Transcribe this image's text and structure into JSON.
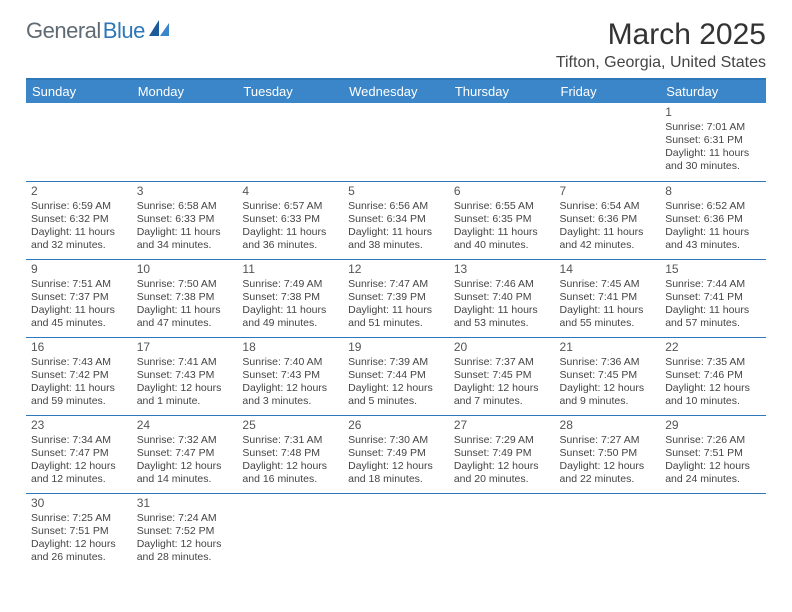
{
  "logo": {
    "text1": "General",
    "text2": "Blue"
  },
  "title": "March 2025",
  "location": "Tifton, Georgia, United States",
  "colors": {
    "header_bg": "#3b86c8",
    "border": "#2e77b8",
    "text": "#444444",
    "logo_gray": "#5f6a72",
    "logo_blue": "#2e77b8",
    "background": "#ffffff"
  },
  "typography": {
    "title_fontsize": 30,
    "location_fontsize": 16,
    "dayhead_fontsize": 13,
    "cell_fontsize": 10.5,
    "daynum_fontsize": 12
  },
  "day_headers": [
    "Sunday",
    "Monday",
    "Tuesday",
    "Wednesday",
    "Thursday",
    "Friday",
    "Saturday"
  ],
  "weeks": [
    [
      {
        "n": "",
        "sr": "",
        "ss": "",
        "dl": ""
      },
      {
        "n": "",
        "sr": "",
        "ss": "",
        "dl": ""
      },
      {
        "n": "",
        "sr": "",
        "ss": "",
        "dl": ""
      },
      {
        "n": "",
        "sr": "",
        "ss": "",
        "dl": ""
      },
      {
        "n": "",
        "sr": "",
        "ss": "",
        "dl": ""
      },
      {
        "n": "",
        "sr": "",
        "ss": "",
        "dl": ""
      },
      {
        "n": "1",
        "sr": "Sunrise: 7:01 AM",
        "ss": "Sunset: 6:31 PM",
        "dl": "Daylight: 11 hours and 30 minutes."
      }
    ],
    [
      {
        "n": "2",
        "sr": "Sunrise: 6:59 AM",
        "ss": "Sunset: 6:32 PM",
        "dl": "Daylight: 11 hours and 32 minutes."
      },
      {
        "n": "3",
        "sr": "Sunrise: 6:58 AM",
        "ss": "Sunset: 6:33 PM",
        "dl": "Daylight: 11 hours and 34 minutes."
      },
      {
        "n": "4",
        "sr": "Sunrise: 6:57 AM",
        "ss": "Sunset: 6:33 PM",
        "dl": "Daylight: 11 hours and 36 minutes."
      },
      {
        "n": "5",
        "sr": "Sunrise: 6:56 AM",
        "ss": "Sunset: 6:34 PM",
        "dl": "Daylight: 11 hours and 38 minutes."
      },
      {
        "n": "6",
        "sr": "Sunrise: 6:55 AM",
        "ss": "Sunset: 6:35 PM",
        "dl": "Daylight: 11 hours and 40 minutes."
      },
      {
        "n": "7",
        "sr": "Sunrise: 6:54 AM",
        "ss": "Sunset: 6:36 PM",
        "dl": "Daylight: 11 hours and 42 minutes."
      },
      {
        "n": "8",
        "sr": "Sunrise: 6:52 AM",
        "ss": "Sunset: 6:36 PM",
        "dl": "Daylight: 11 hours and 43 minutes."
      }
    ],
    [
      {
        "n": "9",
        "sr": "Sunrise: 7:51 AM",
        "ss": "Sunset: 7:37 PM",
        "dl": "Daylight: 11 hours and 45 minutes."
      },
      {
        "n": "10",
        "sr": "Sunrise: 7:50 AM",
        "ss": "Sunset: 7:38 PM",
        "dl": "Daylight: 11 hours and 47 minutes."
      },
      {
        "n": "11",
        "sr": "Sunrise: 7:49 AM",
        "ss": "Sunset: 7:38 PM",
        "dl": "Daylight: 11 hours and 49 minutes."
      },
      {
        "n": "12",
        "sr": "Sunrise: 7:47 AM",
        "ss": "Sunset: 7:39 PM",
        "dl": "Daylight: 11 hours and 51 minutes."
      },
      {
        "n": "13",
        "sr": "Sunrise: 7:46 AM",
        "ss": "Sunset: 7:40 PM",
        "dl": "Daylight: 11 hours and 53 minutes."
      },
      {
        "n": "14",
        "sr": "Sunrise: 7:45 AM",
        "ss": "Sunset: 7:41 PM",
        "dl": "Daylight: 11 hours and 55 minutes."
      },
      {
        "n": "15",
        "sr": "Sunrise: 7:44 AM",
        "ss": "Sunset: 7:41 PM",
        "dl": "Daylight: 11 hours and 57 minutes."
      }
    ],
    [
      {
        "n": "16",
        "sr": "Sunrise: 7:43 AM",
        "ss": "Sunset: 7:42 PM",
        "dl": "Daylight: 11 hours and 59 minutes."
      },
      {
        "n": "17",
        "sr": "Sunrise: 7:41 AM",
        "ss": "Sunset: 7:43 PM",
        "dl": "Daylight: 12 hours and 1 minute."
      },
      {
        "n": "18",
        "sr": "Sunrise: 7:40 AM",
        "ss": "Sunset: 7:43 PM",
        "dl": "Daylight: 12 hours and 3 minutes."
      },
      {
        "n": "19",
        "sr": "Sunrise: 7:39 AM",
        "ss": "Sunset: 7:44 PM",
        "dl": "Daylight: 12 hours and 5 minutes."
      },
      {
        "n": "20",
        "sr": "Sunrise: 7:37 AM",
        "ss": "Sunset: 7:45 PM",
        "dl": "Daylight: 12 hours and 7 minutes."
      },
      {
        "n": "21",
        "sr": "Sunrise: 7:36 AM",
        "ss": "Sunset: 7:45 PM",
        "dl": "Daylight: 12 hours and 9 minutes."
      },
      {
        "n": "22",
        "sr": "Sunrise: 7:35 AM",
        "ss": "Sunset: 7:46 PM",
        "dl": "Daylight: 12 hours and 10 minutes."
      }
    ],
    [
      {
        "n": "23",
        "sr": "Sunrise: 7:34 AM",
        "ss": "Sunset: 7:47 PM",
        "dl": "Daylight: 12 hours and 12 minutes."
      },
      {
        "n": "24",
        "sr": "Sunrise: 7:32 AM",
        "ss": "Sunset: 7:47 PM",
        "dl": "Daylight: 12 hours and 14 minutes."
      },
      {
        "n": "25",
        "sr": "Sunrise: 7:31 AM",
        "ss": "Sunset: 7:48 PM",
        "dl": "Daylight: 12 hours and 16 minutes."
      },
      {
        "n": "26",
        "sr": "Sunrise: 7:30 AM",
        "ss": "Sunset: 7:49 PM",
        "dl": "Daylight: 12 hours and 18 minutes."
      },
      {
        "n": "27",
        "sr": "Sunrise: 7:29 AM",
        "ss": "Sunset: 7:49 PM",
        "dl": "Daylight: 12 hours and 20 minutes."
      },
      {
        "n": "28",
        "sr": "Sunrise: 7:27 AM",
        "ss": "Sunset: 7:50 PM",
        "dl": "Daylight: 12 hours and 22 minutes."
      },
      {
        "n": "29",
        "sr": "Sunrise: 7:26 AM",
        "ss": "Sunset: 7:51 PM",
        "dl": "Daylight: 12 hours and 24 minutes."
      }
    ],
    [
      {
        "n": "30",
        "sr": "Sunrise: 7:25 AM",
        "ss": "Sunset: 7:51 PM",
        "dl": "Daylight: 12 hours and 26 minutes."
      },
      {
        "n": "31",
        "sr": "Sunrise: 7:24 AM",
        "ss": "Sunset: 7:52 PM",
        "dl": "Daylight: 12 hours and 28 minutes."
      },
      {
        "n": "",
        "sr": "",
        "ss": "",
        "dl": ""
      },
      {
        "n": "",
        "sr": "",
        "ss": "",
        "dl": ""
      },
      {
        "n": "",
        "sr": "",
        "ss": "",
        "dl": ""
      },
      {
        "n": "",
        "sr": "",
        "ss": "",
        "dl": ""
      },
      {
        "n": "",
        "sr": "",
        "ss": "",
        "dl": ""
      }
    ]
  ]
}
